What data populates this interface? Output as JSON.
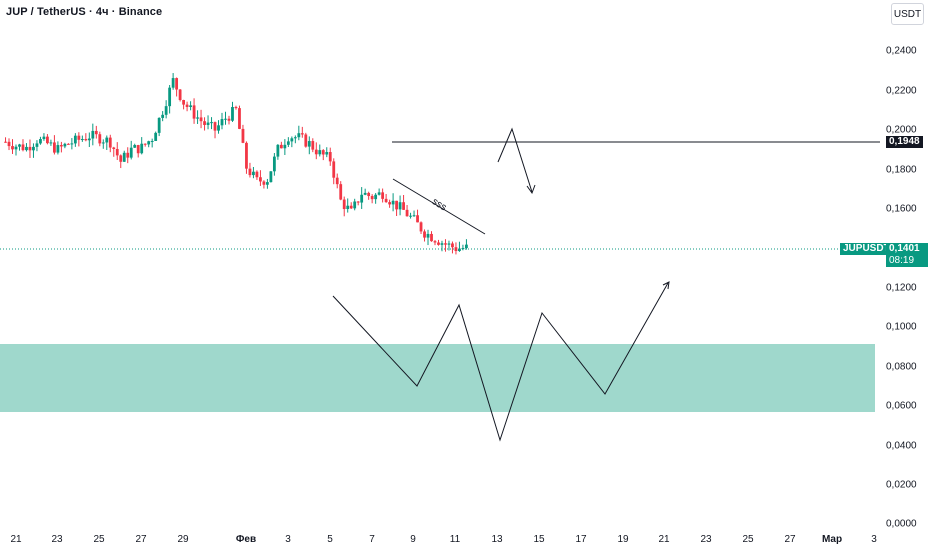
{
  "header": {
    "title": "JUP / TetherUS · 4ч · Binance",
    "currency_button": "USDT"
  },
  "price_axis": {
    "ticks": [
      "0,2400",
      "0,2200",
      "0,2000",
      "0,1800",
      "0,1600",
      "0,1200",
      "0,1000",
      "0,0800",
      "0,0600",
      "0,0400",
      "0,0200",
      "0,0000"
    ]
  },
  "time_axis": {
    "ticks": [
      "21",
      "23",
      "25",
      "27",
      "29",
      "Фев",
      "3",
      "5",
      "7",
      "9",
      "11",
      "13",
      "15",
      "17",
      "19",
      "21",
      "23",
      "25",
      "27",
      "Мар",
      "3"
    ]
  },
  "labels": {
    "level_price": "0,1948",
    "symbol": "JUPUSDT",
    "current_price": "0,1401",
    "countdown": "08:19",
    "trendline_note": "sss"
  },
  "colors": {
    "up": "#089981",
    "down": "#f23645",
    "zone_fill": "#9fd8cc",
    "drawing": "#131722",
    "price_line": "#089981"
  },
  "chart_data": {
    "type": "candlestick",
    "symbol": "JUPUSDT",
    "timeframe": "4ч",
    "exchange": "Binance",
    "price_range": [
      0.0,
      0.26
    ],
    "current_price": 0.1401,
    "horizontal_level": 0.1948,
    "zone": [
      0.058,
      0.092
    ],
    "close_path": [
      [
        20.5,
        0.194
      ],
      [
        21,
        0.192
      ],
      [
        21.5,
        0.191
      ],
      [
        22,
        0.195
      ],
      [
        22.5,
        0.193
      ],
      [
        23,
        0.19
      ],
      [
        23.5,
        0.193
      ],
      [
        24,
        0.195
      ],
      [
        24.5,
        0.197
      ],
      [
        25,
        0.196
      ],
      [
        25.5,
        0.194
      ],
      [
        26,
        0.184
      ],
      [
        26.5,
        0.19
      ],
      [
        27,
        0.191
      ],
      [
        27.5,
        0.196
      ],
      [
        28,
        0.21
      ],
      [
        28.5,
        0.225
      ],
      [
        29,
        0.214
      ],
      [
        29.5,
        0.208
      ],
      [
        30,
        0.203
      ],
      [
        30.5,
        0.2
      ],
      [
        31,
        0.206
      ],
      [
        31.5,
        0.21
      ],
      [
        32,
        0.181
      ],
      [
        32.5,
        0.174
      ],
      [
        33,
        0.175
      ],
      [
        33.5,
        0.19
      ],
      [
        34,
        0.197
      ],
      [
        34.5,
        0.196
      ],
      [
        35,
        0.193
      ],
      [
        35.5,
        0.188
      ],
      [
        36,
        0.185
      ],
      [
        36.5,
        0.164
      ],
      [
        37,
        0.158
      ],
      [
        37.5,
        0.168
      ],
      [
        38,
        0.166
      ],
      [
        38.5,
        0.168
      ],
      [
        39,
        0.163
      ],
      [
        39.5,
        0.159
      ],
      [
        40,
        0.154
      ],
      [
        40.5,
        0.148
      ],
      [
        41,
        0.145
      ],
      [
        41.5,
        0.142
      ],
      [
        42,
        0.14
      ],
      [
        42.5,
        0.1401
      ]
    ]
  }
}
